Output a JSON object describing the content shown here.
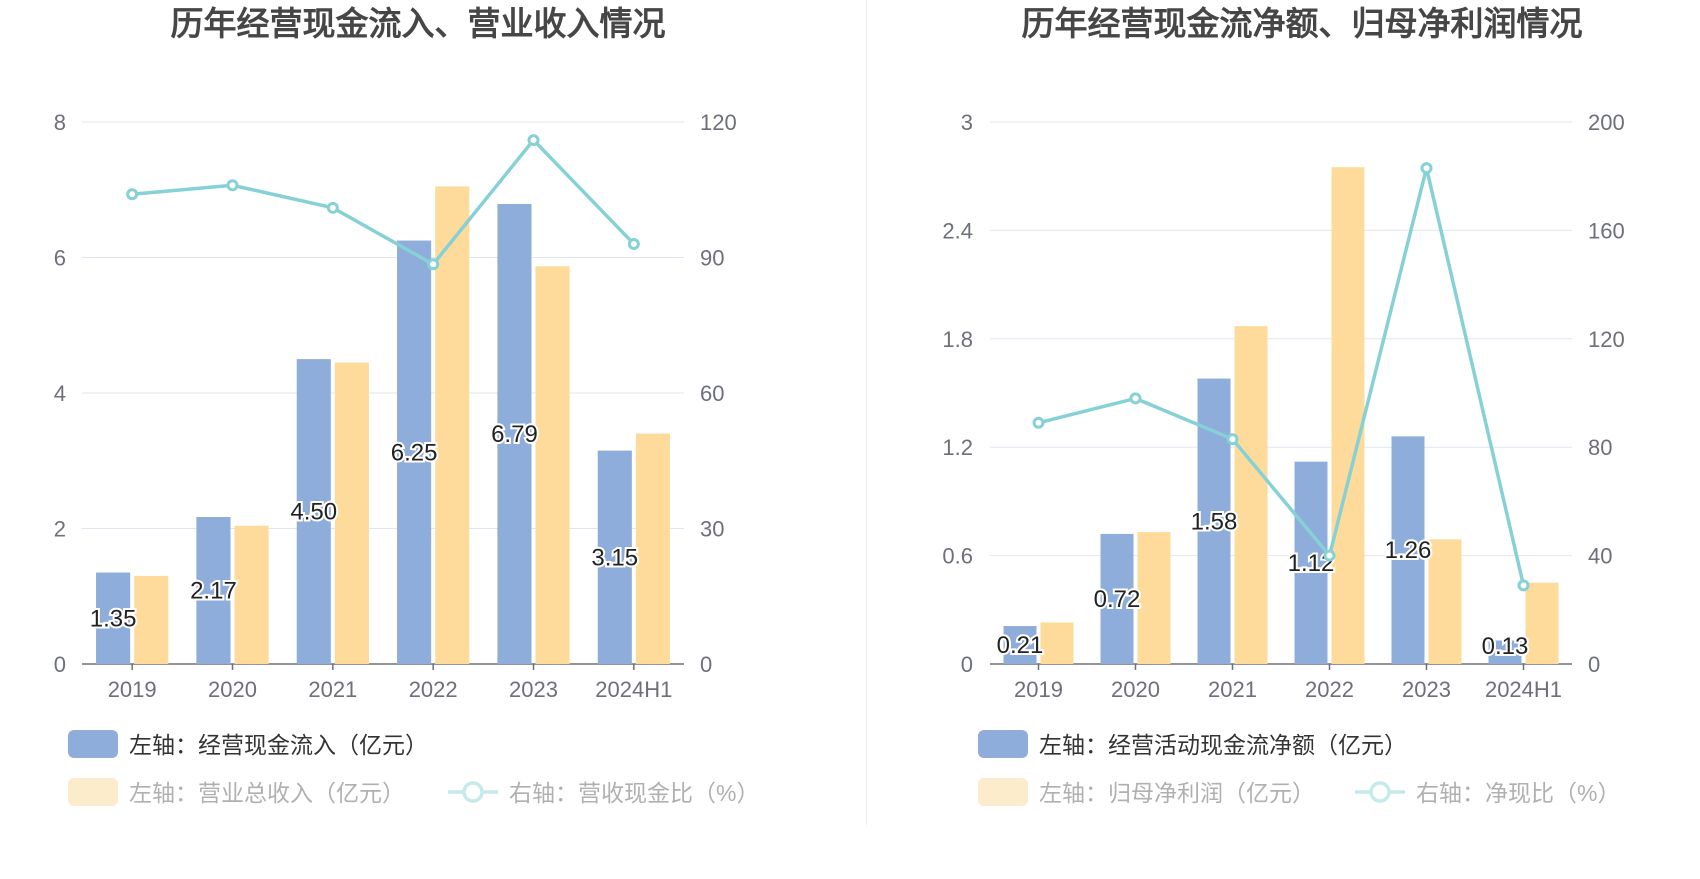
{
  "chart_data": [
    {
      "type": "bar+line",
      "title": "历年经营现金流入、营业收入情况",
      "categories": [
        "2019",
        "2020",
        "2021",
        "2022",
        "2023",
        "2024H1"
      ],
      "left_axis": {
        "min": 0,
        "max": 8,
        "ticks": [
          "0",
          "2",
          "4",
          "6",
          "8"
        ]
      },
      "right_axis": {
        "min": 0,
        "max": 120,
        "ticks": [
          "0",
          "30",
          "60",
          "90",
          "120"
        ]
      },
      "series": [
        {
          "name": "左轴：经营现金流入（亿元）",
          "type": "bar",
          "axis": "left",
          "color": "#8fadda",
          "values": [
            1.35,
            2.17,
            4.5,
            6.25,
            6.79,
            3.15
          ],
          "labels": [
            "1.35",
            "2.17",
            "4.50",
            "6.25",
            "6.79",
            "3.15"
          ]
        },
        {
          "name": "左轴：营业总收入（亿元）",
          "type": "bar",
          "axis": "left",
          "color": "#fedb9b",
          "values": [
            1.3,
            2.04,
            4.45,
            7.05,
            5.87,
            3.4
          ]
        },
        {
          "name": "右轴：营收现金比（%）",
          "type": "line",
          "axis": "right",
          "color": "#86d1d6",
          "values": [
            104,
            106,
            101,
            88.5,
            116,
            93
          ]
        }
      ],
      "grid": true,
      "legend_position": "bottom"
    },
    {
      "type": "bar+line",
      "title": "历年经营现金流净额、归母净利润情况",
      "categories": [
        "2019",
        "2020",
        "2021",
        "2022",
        "2023",
        "2024H1"
      ],
      "left_axis": {
        "min": 0,
        "max": 3,
        "ticks": [
          "0",
          "0.6",
          "1.2",
          "1.8",
          "2.4",
          "3"
        ]
      },
      "right_axis": {
        "min": 0,
        "max": 200,
        "ticks": [
          "0",
          "40",
          "80",
          "120",
          "160",
          "200"
        ]
      },
      "series": [
        {
          "name": "左轴：经营活动现金流净额（亿元）",
          "type": "bar",
          "axis": "left",
          "color": "#8fadda",
          "values": [
            0.21,
            0.72,
            1.58,
            1.12,
            1.26,
            0.13
          ],
          "labels": [
            "0.21",
            "0.72",
            "1.58",
            "1.12",
            "1.26",
            "0.13"
          ]
        },
        {
          "name": "左轴：归母净利润（亿元）",
          "type": "bar",
          "axis": "left",
          "color": "#fedb9b",
          "values": [
            0.23,
            0.73,
            1.87,
            2.75,
            0.69,
            0.45
          ]
        },
        {
          "name": "右轴：净现比（%）",
          "type": "line",
          "axis": "right",
          "color": "#86d1d6",
          "values": [
            89,
            98,
            83,
            40,
            183,
            29
          ]
        }
      ],
      "grid": true,
      "legend_position": "bottom"
    }
  ]
}
